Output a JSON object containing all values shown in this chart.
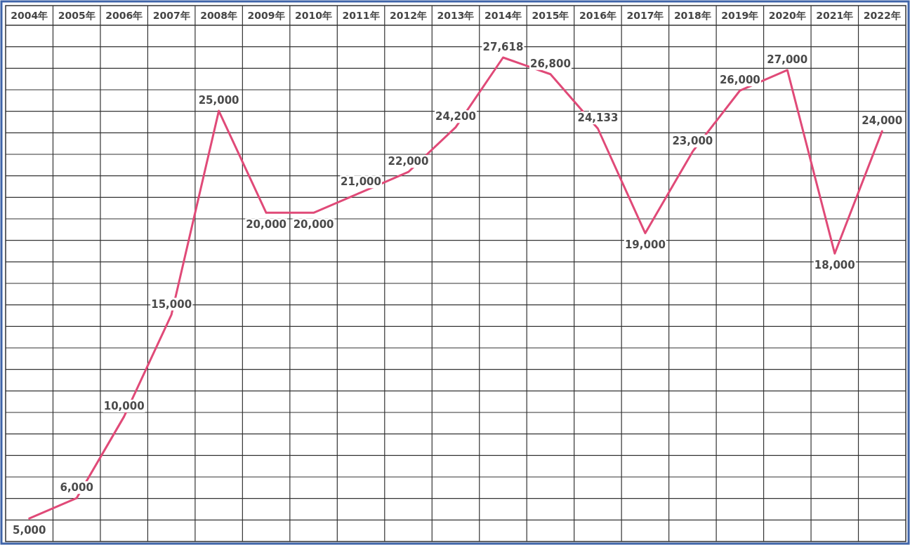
{
  "chart_data": {
    "type": "line",
    "categories": [
      "2004年",
      "2005年",
      "2006年",
      "2007年",
      "2008年",
      "2009年",
      "2010年",
      "2011年",
      "2012年",
      "2013年",
      "2014年",
      "2015年",
      "2016年",
      "2017年",
      "2018年",
      "2019年",
      "2020年",
      "2021年",
      "2022年"
    ],
    "values": [
      5000,
      6000,
      10000,
      15000,
      25000,
      20000,
      20000,
      21000,
      22000,
      24200,
      27618,
      26800,
      24133,
      19000,
      23000,
      26000,
      27000,
      18000,
      24000
    ],
    "value_labels": [
      "5,000",
      "6,000",
      "10,000",
      "15,000",
      "25,000",
      "20,000",
      "20,000",
      "21,000",
      "22,000",
      "24,200",
      "27,618",
      "26,800",
      "24,133",
      "19,000",
      "23,000",
      "26,000",
      "27,000",
      "18,000",
      "24,000"
    ],
    "color": "#e04a78",
    "grid": true
  }
}
